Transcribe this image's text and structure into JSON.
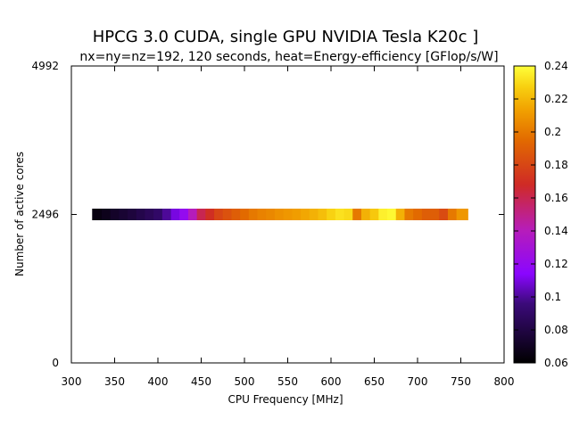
{
  "chart_data": {
    "type": "heatmap",
    "title": "HPCG 3.0 CUDA, single GPU NVIDIA Tesla K20c ]",
    "subtitle": "nx=ny=nz=192, 120 seconds, heat=Energy-efficiency [GFlop/s/W]",
    "xlabel": "CPU Frequency [MHz]",
    "ylabel": "Number of active cores",
    "xlim": [
      300,
      800
    ],
    "ylim": [
      0,
      4992
    ],
    "x_ticks": [
      300,
      350,
      400,
      450,
      500,
      550,
      600,
      650,
      700,
      750,
      800
    ],
    "y_ticks": [
      0,
      2496,
      4992
    ],
    "row_y": 2496,
    "x_extent": [
      324,
      758
    ],
    "colorbar": {
      "min": 0.06,
      "max": 0.24,
      "ticks": [
        0.06,
        0.08,
        0.1,
        0.12,
        0.14,
        0.16,
        0.18,
        0.2,
        0.22,
        0.24
      ],
      "tick_labels": [
        "0.06",
        "0.08",
        "0.1",
        "0.12",
        "0.14",
        "0.16",
        "0.18",
        "0.2",
        "0.22",
        "0.24"
      ],
      "palette": [
        "#000000",
        "#3b0a7a",
        "#8a06ff",
        "#b71db8",
        "#cf2a26",
        "#e26a00",
        "#f1a000",
        "#f8d010",
        "#ffff3a"
      ]
    },
    "x": [
      330,
      340,
      350,
      360,
      370,
      380,
      390,
      400,
      410,
      420,
      430,
      440,
      450,
      460,
      470,
      480,
      490,
      500,
      510,
      520,
      530,
      540,
      550,
      560,
      570,
      580,
      590,
      600,
      610,
      620,
      630,
      640,
      650,
      660,
      670,
      680,
      690,
      700,
      710,
      720,
      730,
      740,
      750
    ],
    "values": [
      0.065,
      0.068,
      0.072,
      0.075,
      0.078,
      0.082,
      0.086,
      0.09,
      0.1,
      0.11,
      0.12,
      0.14,
      0.16,
      0.17,
      0.18,
      0.185,
      0.19,
      0.195,
      0.2,
      0.203,
      0.205,
      0.208,
      0.21,
      0.212,
      0.215,
      0.218,
      0.222,
      0.228,
      0.232,
      0.23,
      0.2,
      0.218,
      0.225,
      0.236,
      0.238,
      0.218,
      0.2,
      0.195,
      0.19,
      0.19,
      0.182,
      0.2,
      0.21
    ]
  }
}
